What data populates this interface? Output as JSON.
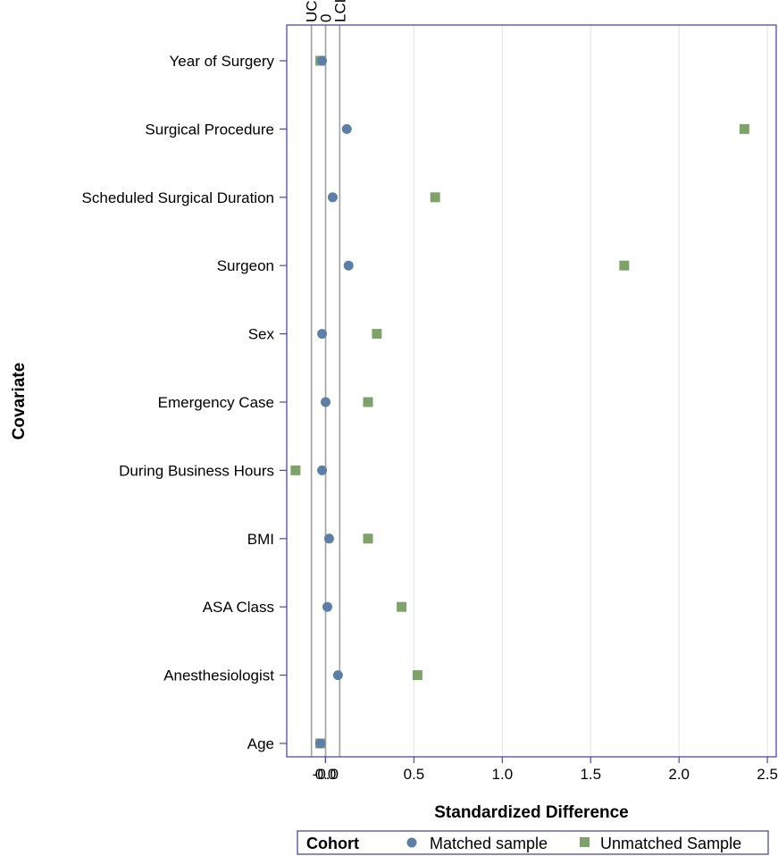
{
  "chart_data": {
    "type": "scatter",
    "title": "",
    "xlabel": "Standardized Difference",
    "ylabel": "Covariate",
    "xlim": [
      -0.22,
      2.55
    ],
    "x_ticks": [
      "-0.0",
      "0.0",
      "0.5",
      "1.0",
      "1.5",
      "2.0",
      "2.5"
    ],
    "x_tick_values": [
      -0.001,
      0.0,
      0.5,
      1.0,
      1.5,
      2.0,
      2.5
    ],
    "categories": [
      "Year of Surgery",
      "Surgical Procedure",
      "Scheduled Surgical Duration",
      "Surgeon",
      "Sex",
      "Emergency Case",
      "During Business Hours",
      "BMI",
      "ASA Class",
      "Anesthesiologist",
      "Age"
    ],
    "reference_lines": [
      {
        "label": "UCL",
        "x": -0.08
      },
      {
        "label": "0",
        "x": 0.0
      },
      {
        "label": "LCL",
        "x": 0.08
      }
    ],
    "series": [
      {
        "name": "Matched sample",
        "marker": "circle",
        "color": "#5b7fa6",
        "values": [
          -0.02,
          0.12,
          0.04,
          0.13,
          -0.02,
          0.0,
          -0.02,
          0.02,
          0.01,
          0.07,
          -0.03
        ]
      },
      {
        "name": "Unmatched Sample",
        "marker": "square",
        "color": "#7ea36a",
        "values": [
          -0.03,
          2.37,
          0.62,
          1.69,
          0.29,
          0.24,
          -0.17,
          0.24,
          0.43,
          0.52,
          -0.03
        ]
      }
    ],
    "grid": true,
    "legend": {
      "title": "Cohort",
      "position": "bottom"
    },
    "colors": {
      "frame": "#4a4aa8",
      "refline": "#a0a0a0",
      "grid": "#e3e3e3"
    }
  }
}
